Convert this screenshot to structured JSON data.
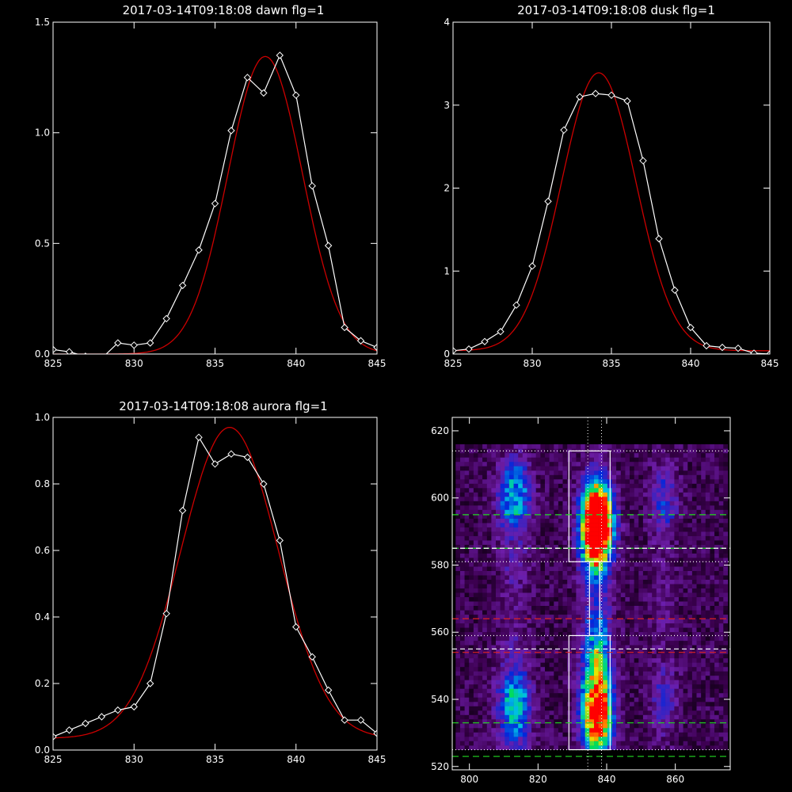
{
  "colors": {
    "background": "#000000",
    "axes": "#ffffff",
    "data_line": "#ffffff",
    "fit_line": "#cc0000"
  },
  "chart_data": [
    {
      "type": "line",
      "title": "2017-03-14T09:18:08 dawn flg=1",
      "xlim": [
        825,
        845
      ],
      "ylim": [
        0,
        1.5
      ],
      "xticks": [
        "825",
        "830",
        "835",
        "840",
        "845"
      ],
      "yticks": [
        "0.0",
        "0.5",
        "1.0",
        "1.5"
      ],
      "ytick_values": [
        0,
        0.5,
        1.0,
        1.5
      ],
      "series": [
        {
          "style": "white-diamond",
          "x": [
            825,
            826,
            827,
            828,
            829,
            830,
            831,
            832,
            833,
            834,
            835,
            836,
            837,
            838,
            839,
            840,
            841,
            842,
            843,
            844,
            845
          ],
          "y": [
            0.02,
            0.01,
            -0.01,
            -0.02,
            0.05,
            0.04,
            0.05,
            0.16,
            0.31,
            0.47,
            0.68,
            1.01,
            1.25,
            1.18,
            1.35,
            1.17,
            0.76,
            0.49,
            0.12,
            0.06,
            0.03
          ]
        },
        {
          "style": "red-fit",
          "gaussian": {
            "amp": 1.345,
            "center": 838.1,
            "sigma": 2.3,
            "base": 0.0
          }
        }
      ]
    },
    {
      "type": "line",
      "title": "2017-03-14T09:18:08 dusk flg=1",
      "xlim": [
        825,
        845
      ],
      "ylim": [
        0,
        4
      ],
      "xticks": [
        "825",
        "830",
        "835",
        "840",
        "845"
      ],
      "yticks": [
        "0",
        "1",
        "2",
        "3",
        "4"
      ],
      "ytick_values": [
        0,
        1,
        2,
        3,
        4
      ],
      "series": [
        {
          "style": "white-diamond",
          "x": [
            825,
            826,
            827,
            828,
            829,
            830,
            831,
            832,
            833,
            834,
            835,
            836,
            837,
            838,
            839,
            840,
            841,
            842,
            843,
            844,
            845
          ],
          "y": [
            0.04,
            0.06,
            0.15,
            0.27,
            0.59,
            1.06,
            1.84,
            2.7,
            3.1,
            3.14,
            3.12,
            3.05,
            2.33,
            1.39,
            0.77,
            0.32,
            0.1,
            0.08,
            0.07,
            0.01,
            0.0
          ]
        },
        {
          "style": "red-fit",
          "gaussian": {
            "amp": 3.35,
            "center": 834.2,
            "sigma": 2.35,
            "base": 0.04
          }
        }
      ]
    },
    {
      "type": "line",
      "title": "2017-03-14T09:18:08 aurora flg=1",
      "xlim": [
        825,
        845
      ],
      "ylim": [
        0,
        1.0
      ],
      "xticks": [
        "825",
        "830",
        "835",
        "840",
        "845"
      ],
      "yticks": [
        "0.0",
        "0.2",
        "0.4",
        "0.6",
        "0.8",
        "1.0"
      ],
      "ytick_values": [
        0,
        0.2,
        0.4,
        0.6,
        0.8,
        1.0
      ],
      "series": [
        {
          "style": "white-diamond",
          "x": [
            825,
            826,
            827,
            828,
            829,
            830,
            831,
            832,
            833,
            834,
            835,
            836,
            837,
            838,
            839,
            840,
            841,
            842,
            843,
            844,
            845
          ],
          "y": [
            0.04,
            0.06,
            0.08,
            0.1,
            0.12,
            0.13,
            0.2,
            0.41,
            0.72,
            0.94,
            0.86,
            0.89,
            0.88,
            0.8,
            0.63,
            0.37,
            0.28,
            0.18,
            0.09,
            0.09,
            0.05
          ]
        },
        {
          "style": "red-fit",
          "gaussian": {
            "amp": 0.935,
            "center": 835.9,
            "sigma": 3.0,
            "base": 0.035
          }
        }
      ]
    },
    {
      "type": "heatmap",
      "xlim": [
        795,
        876
      ],
      "ylim": [
        519,
        624
      ],
      "xticks": [
        "800",
        "820",
        "840",
        "860"
      ],
      "xtick_values": [
        800,
        820,
        840,
        860
      ],
      "yticks": [
        "520",
        "540",
        "560",
        "580",
        "600",
        "620"
      ],
      "ytick_values": [
        520,
        540,
        560,
        580,
        600,
        620
      ],
      "columns": [
        {
          "center": 812.5,
          "width": 7,
          "weights": [
            [
              600,
              1.9
            ],
            [
              580,
              0.4
            ],
            [
              540,
              1.7
            ],
            [
              530,
              0.7
            ],
            [
              560,
              0.2
            ]
          ]
        },
        {
          "center": 836.5,
          "width": 6.5,
          "weights": [
            [
              594,
              5.2
            ],
            [
              586,
              3.0
            ],
            [
              540,
              3.3
            ],
            [
              530,
              2.6
            ],
            [
              555,
              1.8
            ],
            [
              570,
              0.5
            ]
          ]
        },
        {
          "center": 856,
          "width": 6,
          "weights": [
            [
              598,
              0.9
            ],
            [
              540,
              0.7
            ],
            [
              570,
              0.2
            ]
          ]
        }
      ],
      "boxes": [
        {
          "x": [
            829,
            841
          ],
          "y": [
            581,
            614
          ]
        },
        {
          "x": [
            829,
            841
          ],
          "y": [
            525,
            559
          ]
        },
        {
          "x": [
            835,
            838
          ],
          "y": [
            559,
            581
          ]
        }
      ],
      "lines": [
        {
          "orientation": "h",
          "value": 614,
          "style": "white-dot"
        },
        {
          "orientation": "h",
          "value": 581,
          "style": "white-dot"
        },
        {
          "orientation": "h",
          "value": 559,
          "style": "white-dot"
        },
        {
          "orientation": "h",
          "value": 525,
          "style": "white-dot"
        },
        {
          "orientation": "h",
          "value": 595,
          "style": "green-dash"
        },
        {
          "orientation": "h",
          "value": 585,
          "style": "green-dash"
        },
        {
          "orientation": "h",
          "value": 585,
          "style": "white-dash"
        },
        {
          "orientation": "h",
          "value": 564,
          "style": "red-dash"
        },
        {
          "orientation": "h",
          "value": 555,
          "style": "white-dash"
        },
        {
          "orientation": "h",
          "value": 554,
          "style": "red-dash"
        },
        {
          "orientation": "h",
          "value": 533,
          "style": "green-dash"
        },
        {
          "orientation": "h",
          "value": 523,
          "style": "green-dash"
        },
        {
          "orientation": "v",
          "value": 834.5,
          "style": "white-dot"
        },
        {
          "orientation": "v",
          "value": 838.5,
          "style": "white-dot"
        }
      ]
    }
  ]
}
